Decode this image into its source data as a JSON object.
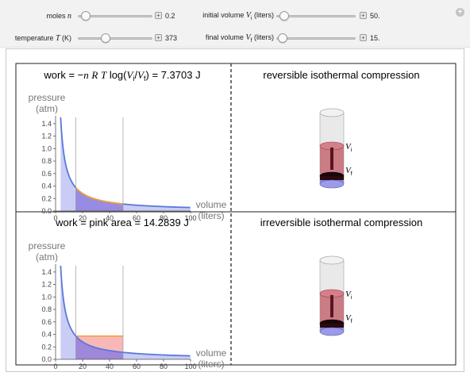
{
  "controls": {
    "moles": {
      "label_prefix": "moles ",
      "label_var": "n",
      "value": "0.2",
      "fraction": 0.05
    },
    "temperature": {
      "label_prefix": "temperature ",
      "label_var": "T",
      "label_suffix": " (K)",
      "value": "373",
      "fraction": 0.35
    },
    "initial_volume": {
      "label_prefix": "initial volume ",
      "label_var": "V",
      "label_sub": "i",
      "label_suffix": " (liters)",
      "value": "50.",
      "fraction": 0.05
    },
    "final_volume": {
      "label_prefix": "final volume ",
      "label_var": "V",
      "label_sub": "f",
      "label_suffix": " (liters)",
      "value": "15.",
      "fraction": 0.02
    },
    "plus_glyph": "+"
  },
  "top": {
    "formula_prefix": "work = −",
    "formula_n": "n",
    "formula_R": "R",
    "formula_T": "T",
    "formula_log": " log(",
    "formula_Vi": "V",
    "formula_sub_i": "i",
    "formula_slash": "/",
    "formula_Vf": "V",
    "formula_sub_f": "f",
    "formula_close": ") = 7.3703 J",
    "right_title": "reversible isothermal compression"
  },
  "bottom": {
    "formula": "work = pink area = 14.2839 J",
    "right_title": "irreversible isothermal compression"
  },
  "plot": {
    "ylabel_line1": "pressure",
    "ylabel_line2": "(atm)",
    "xlabel_line1": "volume",
    "xlabel_line2": "(liters)",
    "x_ticks": [
      "0",
      "20",
      "40",
      "60",
      "80",
      "100"
    ],
    "y_ticks": [
      "0.0",
      "0.2",
      "0.4",
      "0.6",
      "0.8",
      "1.0",
      "1.2",
      "1.4"
    ],
    "xlim": [
      0,
      100
    ],
    "ylim": [
      0,
      1.5
    ],
    "Vi": 50,
    "Vf": 15,
    "nRT": 6.12
  },
  "cylinder": {
    "label_vi": "V",
    "label_vi_sub": "i",
    "label_vf": "V",
    "label_vf_sub": "f"
  },
  "colors": {
    "curve": "#5b78d6",
    "area_fill": "#c9cdf6",
    "work_fill": "#8f7fe0",
    "pink": "#f7b0b0",
    "orange": "#f0a030",
    "gas": "#c0606a"
  }
}
